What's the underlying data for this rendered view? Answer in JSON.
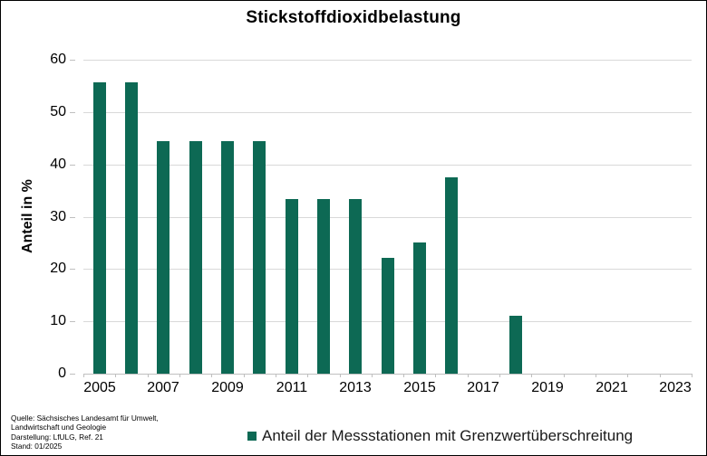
{
  "title": "Stickstoffdioxidbelastung",
  "chart_data": {
    "type": "bar",
    "title": "Stickstoffdioxidbelastung",
    "xlabel": "",
    "ylabel": "Anteil in %",
    "ylim": [
      0,
      60
    ],
    "yticks": [
      0,
      10,
      20,
      30,
      40,
      50,
      60
    ],
    "grid": true,
    "legend_position": "bottom",
    "xtick_label_every": 2,
    "categories": [
      "2005",
      "2006",
      "2007",
      "2008",
      "2009",
      "2010",
      "2011",
      "2012",
      "2013",
      "2014",
      "2015",
      "2016",
      "2017",
      "2018",
      "2019",
      "2020",
      "2021",
      "2022",
      "2023"
    ],
    "series": [
      {
        "name": "Anteil der Messstationen mit Grenzwertüberschreitung",
        "values": [
          55.6,
          55.6,
          44.4,
          44.4,
          44.4,
          44.4,
          33.3,
          33.3,
          33.3,
          22.2,
          25.0,
          37.5,
          0,
          11.1,
          0,
          0,
          0,
          0,
          0
        ]
      }
    ]
  },
  "legend": {
    "label": "Anteil der Messstationen mit Grenzwertüberschreitung"
  },
  "footer": {
    "lines": [
      "Quelle: Sächsisches Landesamt für Umwelt,",
      "Landwirtschaft und Geologie",
      "Darstellung: LfULG, Ref. 21",
      "Stand: 01/2025"
    ]
  },
  "colors": {
    "bar": "#0d6954",
    "grid": "#d9d9d9",
    "axis": "#bfbfbf",
    "text": "#000000"
  }
}
